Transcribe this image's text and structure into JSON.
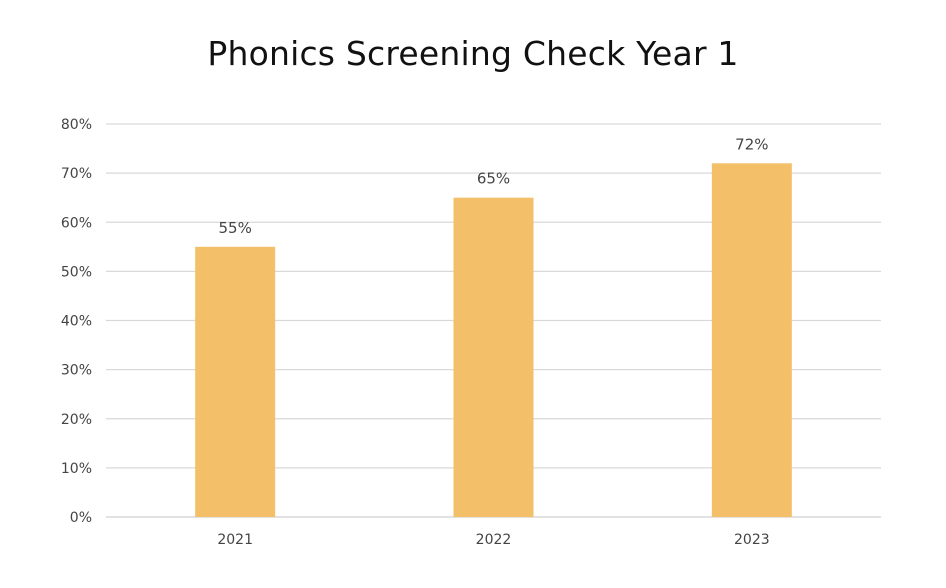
{
  "chart_data": {
    "type": "bar",
    "title": "Phonics Screening Check Year 1",
    "xlabel": "",
    "ylabel": "",
    "categories": [
      "2021",
      "2022",
      "2023"
    ],
    "values": [
      55,
      65,
      72
    ],
    "data_labels": [
      "55%",
      "65%",
      "72%"
    ],
    "ylim": [
      0,
      80
    ],
    "y_ticks": [
      0,
      10,
      20,
      30,
      40,
      50,
      60,
      70,
      80
    ],
    "y_tick_labels": [
      "0%",
      "10%",
      "20%",
      "30%",
      "40%",
      "50%",
      "60%",
      "70%",
      "80%"
    ],
    "grid": true,
    "legend": "none",
    "bar_color": "#F4BF69",
    "grid_color": "#D9D9D9",
    "text_color": "#444444"
  }
}
